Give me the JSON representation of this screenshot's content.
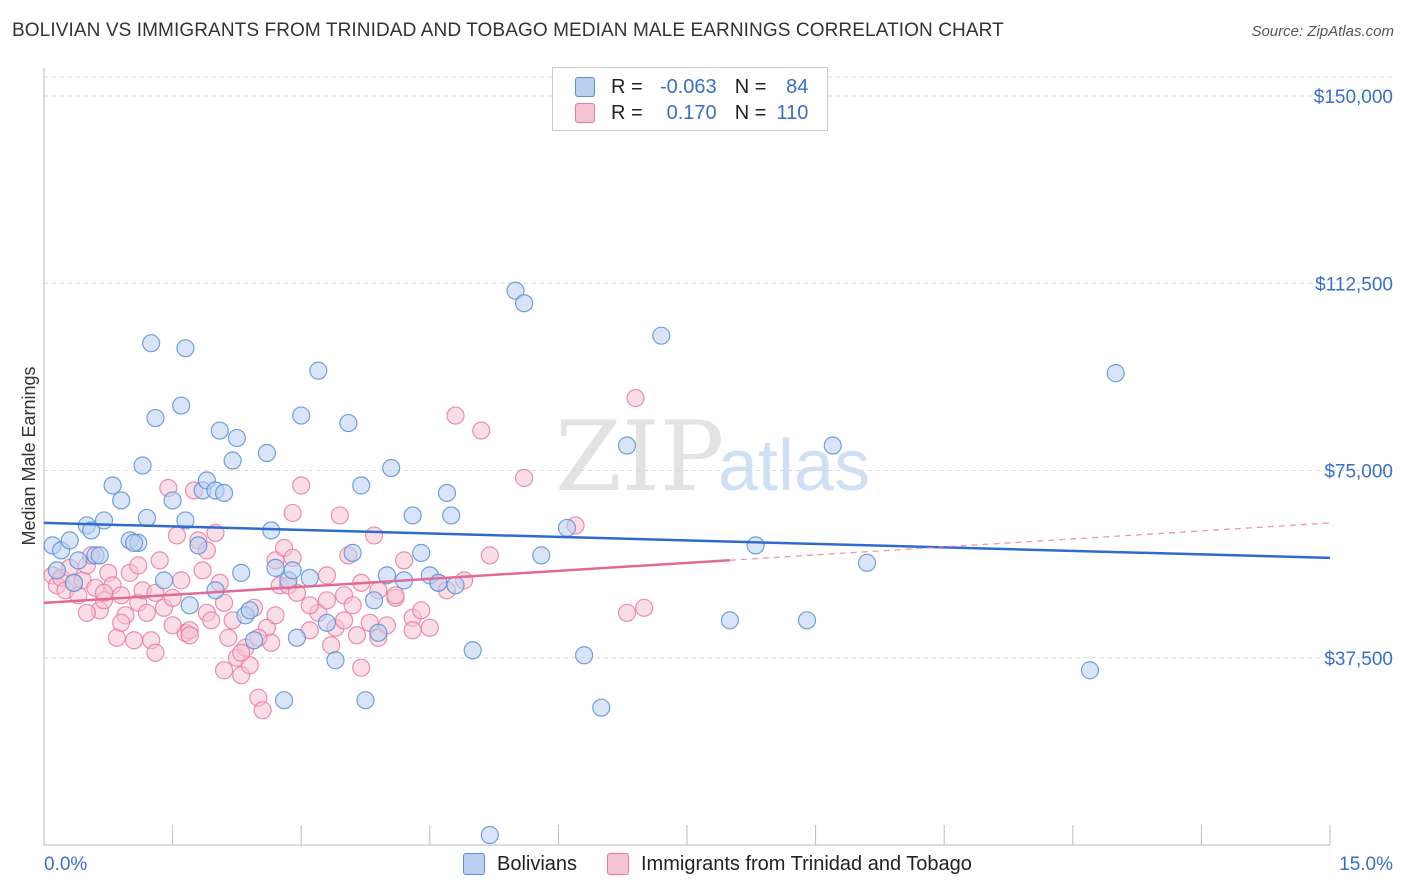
{
  "title": "BOLIVIAN VS IMMIGRANTS FROM TRINIDAD AND TOBAGO MEDIAN MALE EARNINGS CORRELATION CHART",
  "source": "Source: ZipAtlas.com",
  "watermark": {
    "zip": "ZIP",
    "atlas": "atlas"
  },
  "legend": {
    "rows": [
      {
        "r_label": "R =",
        "r_value": "-0.063",
        "n_label": "N =",
        "n_value": "84"
      },
      {
        "r_label": "R =",
        "r_value": "0.170",
        "n_label": "N =",
        "n_value": "110"
      }
    ]
  },
  "bottom_legend": {
    "bolivians": "Bolivians",
    "trinidad": "Immigrants from Trinidad and Tobago"
  },
  "chart_data": {
    "type": "scatter",
    "ylabel": "Median Male Earnings",
    "xlabel": "",
    "xlim": [
      0,
      15
    ],
    "ylim": [
      0,
      150000
    ],
    "x_tick_labels": [
      "0.0%",
      "15.0%"
    ],
    "y_ticks": [
      {
        "value": 150000,
        "label": "$150,000"
      },
      {
        "value": 112500,
        "label": "$112,500"
      },
      {
        "value": 75000,
        "label": "$75,000"
      },
      {
        "value": 37500,
        "label": "$37,500"
      }
    ],
    "colors": {
      "bolivians": "#5b8fd6",
      "trinidad": "#e97ba0",
      "bolivians_fill": "#b9d0f0",
      "trinidad_fill": "#f6c3d3",
      "axis_text": "#3a6fc4"
    },
    "series": [
      {
        "name": "Bolivians",
        "trend": {
          "x0": 0,
          "y0": 64500,
          "x1": 15,
          "y1": 57500,
          "solid_to": 15
        },
        "points": [
          [
            0.1,
            60000
          ],
          [
            0.2,
            59000
          ],
          [
            0.3,
            61000
          ],
          [
            0.4,
            57000
          ],
          [
            0.5,
            64000
          ],
          [
            0.55,
            63000
          ],
          [
            0.6,
            58000
          ],
          [
            0.7,
            65000
          ],
          [
            0.8,
            72000
          ],
          [
            0.9,
            69000
          ],
          [
            1.0,
            61000
          ],
          [
            1.1,
            60500
          ],
          [
            1.15,
            76000
          ],
          [
            1.2,
            65500
          ],
          [
            1.25,
            100500
          ],
          [
            1.3,
            85500
          ],
          [
            1.4,
            53000
          ],
          [
            1.5,
            69000
          ],
          [
            1.6,
            88000
          ],
          [
            1.65,
            65000
          ],
          [
            1.7,
            48000
          ],
          [
            1.65,
            99500
          ],
          [
            1.8,
            60000
          ],
          [
            1.85,
            71000
          ],
          [
            1.9,
            73000
          ],
          [
            2.0,
            71000
          ],
          [
            2.05,
            83000
          ],
          [
            2.1,
            70500
          ],
          [
            2.2,
            77000
          ],
          [
            2.25,
            81500
          ],
          [
            2.3,
            54500
          ],
          [
            2.35,
            46000
          ],
          [
            2.4,
            47000
          ],
          [
            2.45,
            41000
          ],
          [
            2.6,
            78500
          ],
          [
            2.65,
            63000
          ],
          [
            2.7,
            55500
          ],
          [
            2.8,
            29000
          ],
          [
            2.85,
            53000
          ],
          [
            2.9,
            55000
          ],
          [
            2.95,
            41500
          ],
          [
            3.0,
            86000
          ],
          [
            3.1,
            53500
          ],
          [
            3.2,
            95000
          ],
          [
            3.3,
            44500
          ],
          [
            3.4,
            37000
          ],
          [
            3.55,
            84500
          ],
          [
            3.6,
            58500
          ],
          [
            3.7,
            72000
          ],
          [
            3.75,
            29000
          ],
          [
            3.85,
            49000
          ],
          [
            3.9,
            42500
          ],
          [
            4.0,
            54000
          ],
          [
            4.05,
            75500
          ],
          [
            4.2,
            53000
          ],
          [
            4.3,
            66000
          ],
          [
            4.4,
            58500
          ],
          [
            4.5,
            54000
          ],
          [
            4.6,
            52500
          ],
          [
            4.7,
            70500
          ],
          [
            4.75,
            66000
          ],
          [
            4.8,
            52000
          ],
          [
            5.0,
            39000
          ],
          [
            5.2,
            2000
          ],
          [
            5.5,
            111000
          ],
          [
            5.6,
            108500
          ],
          [
            5.8,
            58000
          ],
          [
            6.1,
            63500
          ],
          [
            6.3,
            38000
          ],
          [
            6.5,
            27500
          ],
          [
            6.8,
            80000
          ],
          [
            7.2,
            102000
          ],
          [
            8.0,
            45000
          ],
          [
            8.3,
            60000
          ],
          [
            8.9,
            45000
          ],
          [
            9.2,
            80000
          ],
          [
            9.6,
            56500
          ],
          [
            12.5,
            94500
          ],
          [
            12.2,
            35000
          ],
          [
            0.15,
            55000
          ],
          [
            0.35,
            52500
          ],
          [
            0.65,
            58000
          ],
          [
            1.05,
            60500
          ],
          [
            2.0,
            51000
          ]
        ]
      },
      {
        "name": "Immigrants from Trinidad and Tobago",
        "trend": {
          "x0": 0,
          "y0": 48500,
          "x1": 15,
          "y1": 64500,
          "solid_to": 8.0
        },
        "points": [
          [
            0.1,
            54000
          ],
          [
            0.15,
            52000
          ],
          [
            0.2,
            53500
          ],
          [
            0.25,
            51000
          ],
          [
            0.3,
            55500
          ],
          [
            0.35,
            52500
          ],
          [
            0.4,
            50000
          ],
          [
            0.45,
            53000
          ],
          [
            0.5,
            56000
          ],
          [
            0.55,
            58000
          ],
          [
            0.6,
            51500
          ],
          [
            0.65,
            47000
          ],
          [
            0.7,
            49000
          ],
          [
            0.75,
            54500
          ],
          [
            0.8,
            52000
          ],
          [
            0.85,
            41500
          ],
          [
            0.9,
            50000
          ],
          [
            0.95,
            46000
          ],
          [
            1.0,
            54500
          ],
          [
            1.05,
            41000
          ],
          [
            1.1,
            48500
          ],
          [
            1.15,
            51000
          ],
          [
            1.2,
            46500
          ],
          [
            1.25,
            41000
          ],
          [
            1.3,
            50500
          ],
          [
            1.35,
            57000
          ],
          [
            1.4,
            47500
          ],
          [
            1.45,
            71500
          ],
          [
            1.5,
            49500
          ],
          [
            1.55,
            62000
          ],
          [
            1.6,
            53000
          ],
          [
            1.65,
            42500
          ],
          [
            1.7,
            43000
          ],
          [
            1.75,
            71000
          ],
          [
            1.8,
            61000
          ],
          [
            1.85,
            55000
          ],
          [
            1.9,
            46500
          ],
          [
            1.95,
            45000
          ],
          [
            2.0,
            62500
          ],
          [
            2.05,
            52500
          ],
          [
            2.1,
            48500
          ],
          [
            2.15,
            41500
          ],
          [
            2.2,
            45000
          ],
          [
            2.25,
            37500
          ],
          [
            2.3,
            34000
          ],
          [
            2.35,
            39500
          ],
          [
            2.4,
            36000
          ],
          [
            2.45,
            47500
          ],
          [
            2.5,
            29500
          ],
          [
            2.55,
            27000
          ],
          [
            2.6,
            43500
          ],
          [
            2.65,
            40500
          ],
          [
            2.7,
            57000
          ],
          [
            2.75,
            52000
          ],
          [
            2.8,
            59500
          ],
          [
            2.85,
            52000
          ],
          [
            2.9,
            66500
          ],
          [
            2.95,
            50500
          ],
          [
            3.0,
            72000
          ],
          [
            3.1,
            43000
          ],
          [
            3.2,
            46500
          ],
          [
            3.3,
            54000
          ],
          [
            3.35,
            40000
          ],
          [
            3.4,
            43500
          ],
          [
            3.45,
            66000
          ],
          [
            3.5,
            50000
          ],
          [
            3.55,
            58000
          ],
          [
            3.6,
            48000
          ],
          [
            3.65,
            42000
          ],
          [
            3.7,
            35500
          ],
          [
            3.8,
            44500
          ],
          [
            3.85,
            62000
          ],
          [
            3.9,
            41500
          ],
          [
            4.0,
            44000
          ],
          [
            4.1,
            49500
          ],
          [
            4.2,
            57000
          ],
          [
            4.3,
            45500
          ],
          [
            4.4,
            47000
          ],
          [
            4.5,
            43500
          ],
          [
            4.6,
            52500
          ],
          [
            4.7,
            51000
          ],
          [
            4.8,
            86000
          ],
          [
            4.9,
            53000
          ],
          [
            5.1,
            83000
          ],
          [
            5.2,
            58000
          ],
          [
            5.6,
            73500
          ],
          [
            6.2,
            64000
          ],
          [
            6.8,
            46500
          ],
          [
            7.0,
            47500
          ],
          [
            6.9,
            89500
          ],
          [
            0.5,
            46500
          ],
          [
            0.7,
            50500
          ],
          [
            0.9,
            44500
          ],
          [
            1.1,
            56000
          ],
          [
            1.3,
            38500
          ],
          [
            1.5,
            44000
          ],
          [
            1.7,
            42000
          ],
          [
            1.9,
            59000
          ],
          [
            2.1,
            35000
          ],
          [
            2.3,
            38500
          ],
          [
            2.5,
            41500
          ],
          [
            2.7,
            46000
          ],
          [
            2.9,
            57500
          ],
          [
            3.1,
            48000
          ],
          [
            3.3,
            49000
          ],
          [
            3.5,
            45000
          ],
          [
            3.7,
            52500
          ],
          [
            3.9,
            51000
          ],
          [
            4.1,
            50000
          ],
          [
            4.3,
            43000
          ]
        ]
      }
    ]
  }
}
